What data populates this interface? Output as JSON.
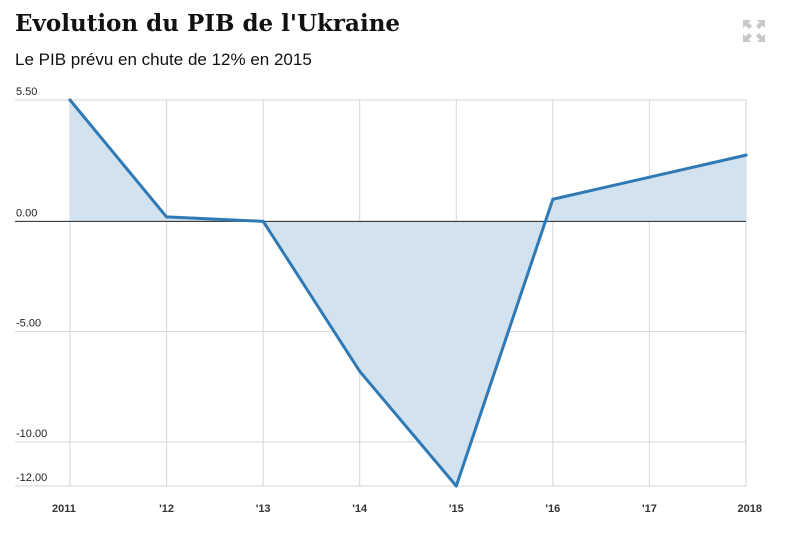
{
  "header": {
    "title": "Evolution du PIB de l'Ukraine",
    "subtitle": "Le PIB prévu en chute de 12% en 2015"
  },
  "icons": {
    "expand": "expand-arrows-icon"
  },
  "colors": {
    "line": "#2f7ab5",
    "area": "#d3e2ef",
    "grid": "#d6d6d6",
    "zero_line": "#222222",
    "icon": "#c8c8c8"
  },
  "chart_data": {
    "type": "area",
    "categories": [
      "2011",
      "'12",
      "'13",
      "'14",
      "'15",
      "'16",
      "'17",
      "2018"
    ],
    "x": [
      2011,
      2012,
      2013,
      2014,
      2015,
      2016,
      2017,
      2018
    ],
    "values": [
      5.5,
      0.2,
      0.0,
      -6.8,
      -12.0,
      1.0,
      2.0,
      3.0
    ],
    "ytick_labels": [
      "5.50",
      "0.00",
      "-5.00",
      "-10.00",
      "-12.00"
    ],
    "ytick_values": [
      5.5,
      0,
      -5,
      -10,
      -12
    ],
    "ylim": [
      -12,
      5.5
    ],
    "xlim": [
      2011,
      2018
    ],
    "grid": true,
    "legend": "none"
  }
}
